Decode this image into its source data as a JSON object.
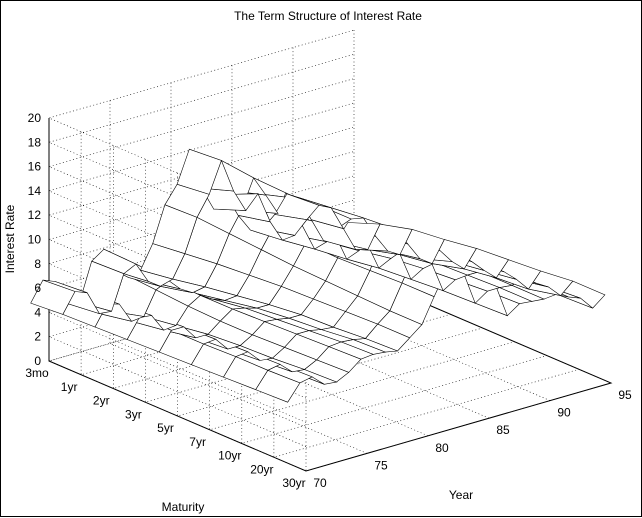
{
  "chart_data": {
    "type": "surface3d",
    "title": "The Term Structure of Interest Rate",
    "xlabel": "Year",
    "ylabel": "Maturity",
    "zlabel": "Interest Rate",
    "x_ticks": [
      "70",
      "75",
      "80",
      "85",
      "90",
      "95"
    ],
    "y_ticks": [
      "3mo",
      "1yr",
      "2yr",
      "3yr",
      "5yr",
      "7yr",
      "10yr",
      "20yr",
      "30yr"
    ],
    "z_ticks": [
      "0",
      "2",
      "4",
      "6",
      "8",
      "10",
      "12",
      "14",
      "16",
      "18",
      "20"
    ],
    "xlim": [
      70,
      95
    ],
    "zlim": [
      0,
      20
    ],
    "grid": true,
    "surface": {
      "years": [
        68.5,
        69.5,
        70.5,
        71.5,
        72.5,
        73.5,
        74.5,
        75.5,
        76.5,
        77.5,
        78.5,
        79.5,
        80.5,
        81.5,
        82.5,
        83.5,
        84.5,
        85.5,
        86.5,
        87.5,
        88.5,
        89.5,
        90.5,
        91.5,
        92.5,
        93.5,
        94.5
      ],
      "maturities": [
        "3mo",
        "1yr",
        "2yr",
        "3yr",
        "5yr",
        "7yr",
        "10yr",
        "20yr",
        "30yr"
      ],
      "rates": [
        [
          5.2,
          5.4,
          5.5,
          5.6,
          5.7,
          5.8,
          5.9,
          6.0,
          6.1
        ],
        [
          6.8,
          7.0,
          7.1,
          7.1,
          7.2,
          7.2,
          7.3,
          7.3,
          7.4
        ],
        [
          6.4,
          6.6,
          6.8,
          7.0,
          7.2,
          7.3,
          7.4,
          7.5,
          7.6
        ],
        [
          4.3,
          4.6,
          5.1,
          5.5,
          6.0,
          6.2,
          6.4,
          6.6,
          6.7
        ],
        [
          4.1,
          4.5,
          5.2,
          5.6,
          6.0,
          6.2,
          6.3,
          6.5,
          6.6
        ],
        [
          7.2,
          7.3,
          7.1,
          6.9,
          6.8,
          6.8,
          6.9,
          7.0,
          7.1
        ],
        [
          7.9,
          7.8,
          7.6,
          7.5,
          7.5,
          7.6,
          7.7,
          7.8,
          7.9
        ],
        [
          5.8,
          6.1,
          6.6,
          6.9,
          7.3,
          7.5,
          7.7,
          7.9,
          8.0
        ],
        [
          5.0,
          5.4,
          6.0,
          6.5,
          7.0,
          7.3,
          7.5,
          7.8,
          7.9
        ],
        [
          5.3,
          5.7,
          6.2,
          6.6,
          7.0,
          7.3,
          7.4,
          7.6,
          7.7
        ],
        [
          7.2,
          7.5,
          7.8,
          8.0,
          8.2,
          8.3,
          8.4,
          8.5,
          8.5
        ],
        [
          10.1,
          10.2,
          10.0,
          9.8,
          9.6,
          9.5,
          9.4,
          9.3,
          9.3
        ],
        [
          11.5,
          11.8,
          11.6,
          11.4,
          11.2,
          11.1,
          11.2,
          11.3,
          11.3
        ],
        [
          14.1,
          14.3,
          14.0,
          13.9,
          13.8,
          13.6,
          13.5,
          13.4,
          13.2
        ],
        [
          10.6,
          11.5,
          12.3,
          12.7,
          13.0,
          13.1,
          13.0,
          12.9,
          12.8
        ],
        [
          8.6,
          9.6,
          10.5,
          10.9,
          11.3,
          11.5,
          11.7,
          11.9,
          12.0
        ],
        [
          9.5,
          10.7,
          11.5,
          11.9,
          12.2,
          12.4,
          12.5,
          12.6,
          12.6
        ],
        [
          7.5,
          8.1,
          8.9,
          9.4,
          9.8,
          10.2,
          10.5,
          10.8,
          10.9
        ],
        [
          6.0,
          6.3,
          6.7,
          7.0,
          7.4,
          7.6,
          7.8,
          7.9,
          8.0
        ],
        [
          5.8,
          6.4,
          7.0,
          7.4,
          7.9,
          8.2,
          8.4,
          8.6,
          8.7
        ],
        [
          6.7,
          7.4,
          7.9,
          8.1,
          8.3,
          8.4,
          8.5,
          8.6,
          8.6
        ],
        [
          8.1,
          8.3,
          8.3,
          8.3,
          8.4,
          8.4,
          8.5,
          8.5,
          8.5
        ],
        [
          7.5,
          7.8,
          8.1,
          8.3,
          8.4,
          8.5,
          8.6,
          8.7,
          8.6
        ],
        [
          5.4,
          5.8,
          6.3,
          6.8,
          7.4,
          7.6,
          7.9,
          8.1,
          8.1
        ],
        [
          3.4,
          3.8,
          4.8,
          5.3,
          6.2,
          6.6,
          7.0,
          7.5,
          7.7
        ],
        [
          3.0,
          3.5,
          4.2,
          4.6,
          5.3,
          5.7,
          5.9,
          6.5,
          6.6
        ],
        [
          4.3,
          5.3,
          6.0,
          6.3,
          6.7,
          6.9,
          7.1,
          7.4,
          7.4
        ]
      ]
    }
  }
}
